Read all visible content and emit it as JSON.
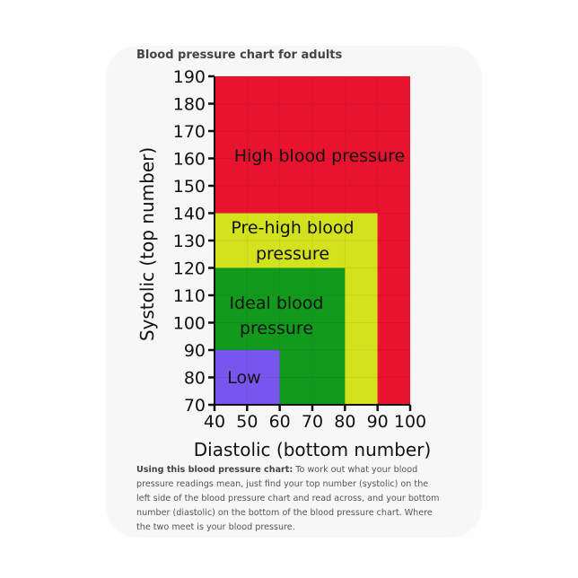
{
  "chart_data": {
    "type": "area",
    "title": "Blood pressure chart for adults",
    "xlabel": "Diastolic (bottom number)",
    "ylabel": "Systolic (top number)",
    "xlim": [
      40,
      100
    ],
    "ylim": [
      70,
      190
    ],
    "xticks": [
      40,
      50,
      60,
      70,
      80,
      90,
      100
    ],
    "yticks": [
      70,
      80,
      90,
      100,
      110,
      120,
      130,
      140,
      150,
      160,
      170,
      180,
      190
    ],
    "grid": true,
    "regions": [
      {
        "label": "High blood pressure",
        "x": [
          40,
          100
        ],
        "y": [
          70,
          190
        ],
        "color": "#e8132e"
      },
      {
        "label": "Pre-high blood pressure",
        "label_lines": [
          "Pre-high blood",
          "pressure"
        ],
        "x": [
          40,
          90
        ],
        "y": [
          70,
          140
        ],
        "color": "#d3e21c"
      },
      {
        "label": "Ideal blood pressure",
        "label_lines": [
          "Ideal blood",
          "pressure"
        ],
        "x": [
          40,
          80
        ],
        "y": [
          70,
          120
        ],
        "color": "#129a1c"
      },
      {
        "label": "Low",
        "label_lines": [
          "Low"
        ],
        "x": [
          40,
          60
        ],
        "y": [
          70,
          90
        ],
        "color": "#7656ec"
      }
    ]
  },
  "note": {
    "bold": "Using this blood pressure chart:",
    "text": " To work out what your blood pressure readings mean, just find your top number (systolic) on the left side of the blood pressure chart and read across, and your bottom number (diastolic) on the bottom of the blood pressure chart. Where the two meet is your blood pressure."
  }
}
